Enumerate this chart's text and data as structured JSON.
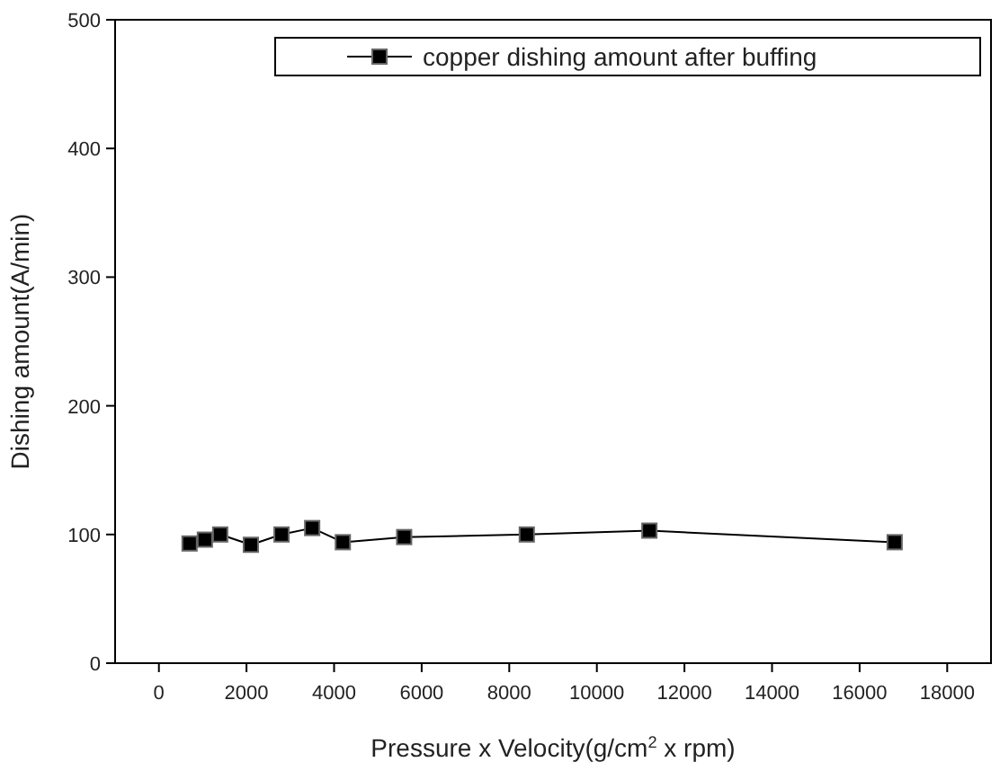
{
  "chart_data": {
    "type": "line",
    "xlabel": "Pressure x Velocity(g/cm$^{2}$ x rpm)",
    "ylabel": "Dishing amount(A/min)",
    "x": [
      700,
      1050,
      1400,
      2100,
      2800,
      3500,
      4200,
      5600,
      8400,
      11200,
      16800
    ],
    "series": [
      {
        "name": "copper dishing amount after buffing",
        "color": "#000000",
        "values": [
          93,
          96,
          100,
          92,
          100,
          105,
          94,
          98,
          100,
          103,
          94
        ]
      }
    ],
    "xlim": [
      -1000,
      19000
    ],
    "xticks": [
      0,
      2000,
      4000,
      6000,
      8000,
      10000,
      12000,
      14000,
      16000,
      18000
    ],
    "ylim": [
      0,
      500
    ],
    "yticks": [
      0,
      100,
      200,
      300,
      400,
      500
    ],
    "legend": "top right",
    "marker": "square",
    "line_style": "solid",
    "grid": false
  }
}
